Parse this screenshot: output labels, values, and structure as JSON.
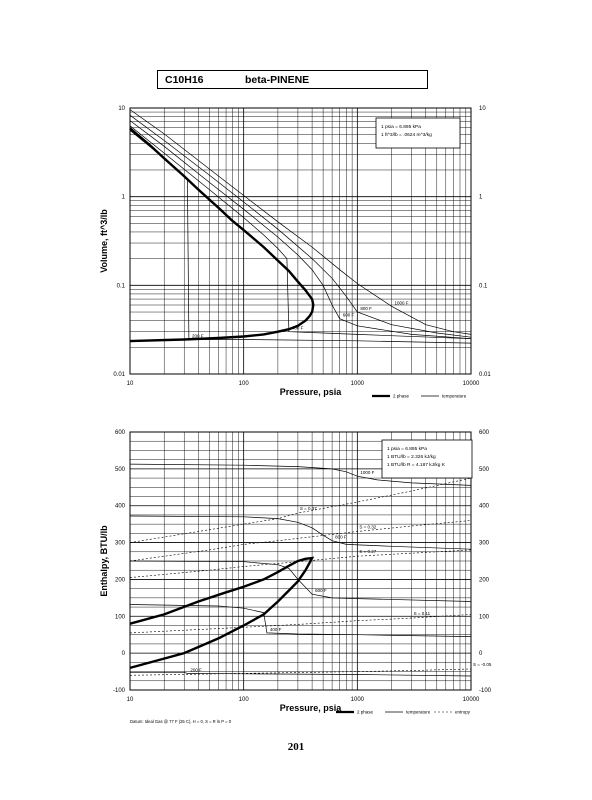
{
  "header": {
    "formula": "C10H16",
    "name": "beta-PINENE"
  },
  "page_number": "201",
  "chart_data": [
    {
      "type": "line",
      "id": "volume",
      "log_x": true,
      "log_y": true,
      "xlim": [
        10,
        10000
      ],
      "ylim": [
        0.01,
        10
      ],
      "xlabel": "Pressure,  psia",
      "ylabel": "Volume, ft^3/lb",
      "x_ticks": [
        "10",
        "100",
        "1000",
        "10000"
      ],
      "y_ticks": [
        "0.01",
        "0.1",
        "1",
        "10"
      ],
      "conversion_box": [
        "1 psia = 6.895 kPa",
        "1 ft^3/lb = .0624 m^3/kg"
      ],
      "legend": [
        {
          "label": "2 phase",
          "style": "thick"
        },
        {
          "label": "temperature",
          "style": "thin"
        }
      ],
      "series": [
        {
          "name": "2 phase",
          "kind": "thick",
          "points": [
            [
              10,
              5.9
            ],
            [
              15,
              3.8
            ],
            [
              20,
              2.7
            ],
            [
              30,
              1.7
            ],
            [
              40,
              1.2
            ],
            [
              60,
              0.75
            ],
            [
              80,
              0.53
            ],
            [
              100,
              0.42
            ],
            [
              150,
              0.27
            ],
            [
              200,
              0.19
            ],
            [
              250,
              0.145
            ],
            [
              300,
              0.11
            ],
            [
              350,
              0.088
            ],
            [
              400,
              0.07
            ],
            [
              410,
              0.06
            ],
            [
              400,
              0.05
            ],
            [
              380,
              0.045
            ],
            [
              350,
              0.04
            ],
            [
              300,
              0.035
            ],
            [
              250,
              0.032
            ],
            [
              200,
              0.03
            ],
            [
              150,
              0.028
            ],
            [
              100,
              0.0265
            ],
            [
              60,
              0.0255
            ],
            [
              30,
              0.0245
            ],
            [
              10,
              0.0235
            ]
          ]
        },
        {
          "name": "1000 F",
          "label": "1000 F",
          "kind": "thin",
          "points": [
            [
              10,
              9.6
            ],
            [
              20,
              5.1
            ],
            [
              50,
              2.05
            ],
            [
              100,
              1.03
            ],
            [
              200,
              0.52
            ],
            [
              400,
              0.27
            ],
            [
              700,
              0.15
            ],
            [
              1000,
              0.105
            ],
            [
              2000,
              0.058
            ],
            [
              4000,
              0.036
            ],
            [
              7000,
              0.03
            ],
            [
              10000,
              0.028
            ]
          ]
        },
        {
          "name": "800 F",
          "label": "800 F",
          "kind": "thin",
          "points": [
            [
              10,
              8.3
            ],
            [
              20,
              4.3
            ],
            [
              50,
              1.75
            ],
            [
              100,
              0.87
            ],
            [
              200,
              0.43
            ],
            [
              400,
              0.2
            ],
            [
              600,
              0.12
            ],
            [
              800,
              0.075
            ],
            [
              1000,
              0.05
            ],
            [
              2000,
              0.036
            ],
            [
              5000,
              0.029
            ],
            [
              10000,
              0.026
            ]
          ]
        },
        {
          "name": "600 F",
          "label": "600 F",
          "kind": "thin",
          "points": [
            [
              10,
              7.2
            ],
            [
              20,
              3.7
            ],
            [
              50,
              1.45
            ],
            [
              100,
              0.72
            ],
            [
              200,
              0.35
            ],
            [
              300,
              0.22
            ],
            [
              400,
              0.15
            ],
            [
              500,
              0.1
            ],
            [
              600,
              0.06
            ],
            [
              700,
              0.042
            ],
            [
              1000,
              0.035
            ],
            [
              3000,
              0.028
            ],
            [
              10000,
              0.025
            ]
          ]
        },
        {
          "name": "400 F",
          "label": "400 F",
          "kind": "thin",
          "points": [
            [
              10,
              6.3
            ],
            [
              20,
              3.1
            ],
            [
              50,
              1.2
            ],
            [
              100,
              0.58
            ],
            [
              150,
              0.37
            ],
            [
              200,
              0.26
            ],
            [
              240,
              0.2
            ],
            [
              250,
              0.03
            ],
            [
              500,
              0.029
            ],
            [
              1000,
              0.028
            ],
            [
              10000,
              0.025
            ]
          ]
        },
        {
          "name": "200 F",
          "label": "200 F",
          "kind": "thin",
          "points": [
            [
              10,
              5.6
            ],
            [
              20,
              2.7
            ],
            [
              30,
              1.75
            ],
            [
              32,
              1.6
            ],
            [
              33,
              0.0245
            ],
            [
              100,
              0.0245
            ],
            [
              1000,
              0.0237
            ],
            [
              10000,
              0.0223
            ]
          ]
        }
      ]
    },
    {
      "type": "line",
      "id": "enthalpy",
      "log_x": true,
      "xlim": [
        10,
        10000
      ],
      "ylim": [
        -100,
        600
      ],
      "xlabel": "Pressure,  psia",
      "ylabel": "Enthalpy, BTU/lb",
      "x_ticks": [
        "10",
        "100",
        "1000",
        "10000"
      ],
      "y_ticks": [
        "-100",
        "0",
        "100",
        "200",
        "300",
        "400",
        "500",
        "600"
      ],
      "conversion_box": [
        "1 psia = 6.895 kPa",
        "1 BTU/lb = 2.326 kJ/kg",
        "1 BTU/lb R = 4.187 kJ/kg K"
      ],
      "footnote": "Datum: Ideal Gas @ 77 F (25 C), H = 0,  S = R ln P = 0",
      "legend": [
        {
          "label": "2 phase",
          "style": "thick"
        },
        {
          "label": "temperature",
          "style": "thin"
        },
        {
          "label": "entropy",
          "style": "dotted"
        }
      ],
      "series": [
        {
          "name": "2 phase",
          "kind": "thick",
          "points": [
            [
              10,
              80
            ],
            [
              20,
              105
            ],
            [
              40,
              140
            ],
            [
              70,
              165
            ],
            [
              100,
              180
            ],
            [
              150,
              200
            ],
            [
              200,
              220
            ],
            [
              250,
              237
            ],
            [
              300,
              250
            ],
            [
              350,
              256
            ],
            [
              400,
              258
            ],
            [
              380,
              245
            ],
            [
              350,
              225
            ],
            [
              300,
              195
            ],
            [
              250,
              170
            ],
            [
              200,
              140
            ],
            [
              150,
              105
            ],
            [
              100,
              75
            ],
            [
              60,
              40
            ],
            [
              30,
              0
            ],
            [
              10,
              -40
            ]
          ]
        },
        {
          "name": "1000 F",
          "label": "1000 F",
          "kind": "thin",
          "points": [
            [
              10,
              513
            ],
            [
              100,
              510
            ],
            [
              300,
              506
            ],
            [
              600,
              500
            ],
            [
              800,
              492
            ],
            [
              1000,
              480
            ],
            [
              1500,
              470
            ],
            [
              3000,
              462
            ],
            [
              10000,
              455
            ]
          ]
        },
        {
          "name": "800 F",
          "label": "800 F",
          "kind": "thin",
          "points": [
            [
              10,
              372
            ],
            [
              100,
              370
            ],
            [
              200,
              365
            ],
            [
              300,
              355
            ],
            [
              400,
              340
            ],
            [
              500,
              320
            ],
            [
              600,
              305
            ],
            [
              800,
              295
            ],
            [
              2000,
              290
            ],
            [
              10000,
              282
            ]
          ]
        },
        {
          "name": "600 F",
          "label": "600 F",
          "kind": "thin",
          "points": [
            [
              10,
              250
            ],
            [
              100,
              248
            ],
            [
              200,
              240
            ],
            [
              250,
              230
            ],
            [
              300,
              200
            ],
            [
              400,
              160
            ],
            [
              600,
              150
            ],
            [
              1000,
              148
            ],
            [
              10000,
              140
            ]
          ]
        },
        {
          "name": "400 F",
          "label": "400 F",
          "kind": "thin",
          "points": [
            [
              10,
              132
            ],
            [
              60,
              128
            ],
            [
              100,
              122
            ],
            [
              150,
              110
            ],
            [
              160,
              55
            ],
            [
              300,
              52
            ],
            [
              1000,
              50
            ],
            [
              10000,
              45
            ]
          ]
        },
        {
          "name": "200 F",
          "label": "200 F",
          "kind": "thin",
          "points": [
            [
              10,
              -52
            ],
            [
              30,
              -52
            ],
            [
              32,
              -55
            ],
            [
              100,
              -56
            ],
            [
              1000,
              -58
            ],
            [
              10000,
              -62
            ]
          ]
        },
        {
          "name": "S=0.37",
          "label": "S = 0.37",
          "kind": "dotted",
          "points": [
            [
              10,
              300
            ],
            [
              50,
              335
            ],
            [
              100,
              350
            ],
            [
              200,
              365
            ],
            [
              300,
              380
            ],
            [
              1000,
              410
            ],
            [
              3000,
              440
            ],
            [
              10000,
              475
            ]
          ]
        },
        {
          "name": "S=0.32",
          "label": "S = 0.32",
          "kind": "dotted",
          "points": [
            [
              10,
              250
            ],
            [
              50,
              280
            ],
            [
              100,
              295
            ],
            [
              200,
              305
            ],
            [
              1000,
              330
            ],
            [
              3000,
              345
            ],
            [
              10000,
              360
            ]
          ]
        },
        {
          "name": "S=0.27",
          "label": "S = 0.27",
          "kind": "dotted",
          "points": [
            [
              10,
              205
            ],
            [
              50,
              225
            ],
            [
              100,
              235
            ],
            [
              300,
              248
            ],
            [
              1000,
              263
            ],
            [
              10000,
              280
            ]
          ]
        },
        {
          "name": "S=0.11",
          "label": "S = 0.11",
          "kind": "dotted",
          "points": [
            [
              10,
              55
            ],
            [
              100,
              70
            ],
            [
              300,
              78
            ],
            [
              1000,
              88
            ],
            [
              3000,
              95
            ],
            [
              10000,
              105
            ]
          ]
        },
        {
          "name": "S=-0.05",
          "label": "S = -0.05",
          "kind": "dotted",
          "points": [
            [
              10,
              -60
            ],
            [
              100,
              -55
            ],
            [
              1000,
              -50
            ],
            [
              3000,
              -47
            ],
            [
              10000,
              -43
            ]
          ]
        }
      ]
    }
  ]
}
